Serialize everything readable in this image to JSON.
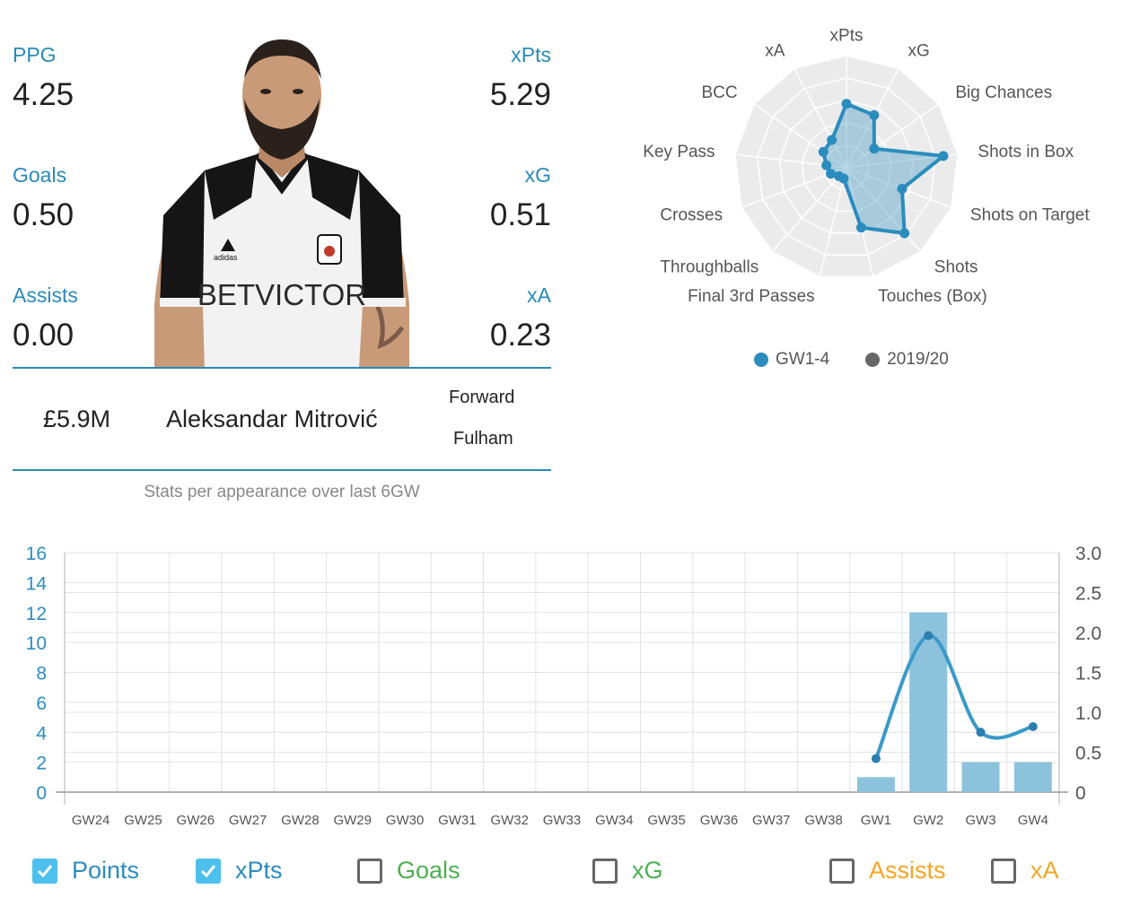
{
  "player": {
    "ppg_label": "PPG",
    "ppg": "4.25",
    "goals_label": "Goals",
    "goals": "0.50",
    "assists_label": "Assists",
    "assists": "0.00",
    "xpts_label": "xPts",
    "xpts": "5.29",
    "xg_label": "xG",
    "xg": "0.51",
    "xa_label": "xA",
    "xa": "0.23",
    "price": "£5.9M",
    "name": "Aleksandar Mitrović",
    "position": "Forward",
    "team": "Fulham",
    "shirt_sponsor": "BETVICTOR",
    "caption": "Stats per appearance over last 6GW"
  },
  "radar": {
    "axes": [
      "xPts",
      "xG",
      "Big Chances",
      "Shots in Box",
      "Shots on Target",
      "Shots",
      "Touches (Box)",
      "Final 3rd Passes",
      "Throughballs",
      "Crosses",
      "Key Pass",
      "BCC",
      "xA"
    ],
    "series": [
      {
        "name": "GW1-4",
        "values": [
          0.57,
          0.53,
          0.3,
          0.87,
          0.53,
          0.78,
          0.55,
          0.1,
          0.1,
          0.15,
          0.18,
          0.25,
          0.28
        ]
      }
    ],
    "legend": [
      {
        "label": "GW1-4",
        "color": "#2b8cbe"
      },
      {
        "label": "2019/20",
        "color": "#666666"
      }
    ]
  },
  "chart_data": {
    "type": "bar",
    "categories": [
      "GW24",
      "GW25",
      "GW26",
      "GW27",
      "GW28",
      "GW29",
      "GW30",
      "GW31",
      "GW32",
      "GW33",
      "GW34",
      "GW35",
      "GW36",
      "GW37",
      "GW38",
      "GW1",
      "GW2",
      "GW3",
      "GW4"
    ],
    "series": [
      {
        "name": "Points",
        "type": "bar",
        "axis": "left",
        "values": [
          null,
          null,
          null,
          null,
          null,
          null,
          null,
          null,
          null,
          null,
          null,
          null,
          null,
          null,
          null,
          1,
          12,
          2,
          2
        ]
      },
      {
        "name": "xPts",
        "type": "line",
        "axis": "right",
        "values": [
          null,
          null,
          null,
          null,
          null,
          null,
          null,
          null,
          null,
          null,
          null,
          null,
          null,
          null,
          null,
          0.42,
          1.96,
          0.75,
          0.82
        ]
      }
    ],
    "ylim_left": [
      0,
      16
    ],
    "ylim_right": [
      0,
      3.0
    ],
    "yticks_left": [
      "0",
      "2",
      "4",
      "6",
      "8",
      "10",
      "12",
      "14",
      "16"
    ],
    "yticks_right": [
      "0",
      "0.5",
      "1.0",
      "1.5",
      "2.0",
      "2.5",
      "3.0"
    ],
    "grid": true
  },
  "toggles": [
    {
      "label": "Points",
      "checked": true,
      "color": "#2b8cbe"
    },
    {
      "label": "xPts",
      "checked": true,
      "color": "#2b8cbe"
    },
    {
      "label": "Goals",
      "checked": false,
      "color": "#4caf50"
    },
    {
      "label": "xG",
      "checked": false,
      "color": "#4caf50"
    },
    {
      "label": "Assists",
      "checked": false,
      "color": "#f5a623"
    },
    {
      "label": "xA",
      "checked": false,
      "color": "#f5a623"
    }
  ]
}
